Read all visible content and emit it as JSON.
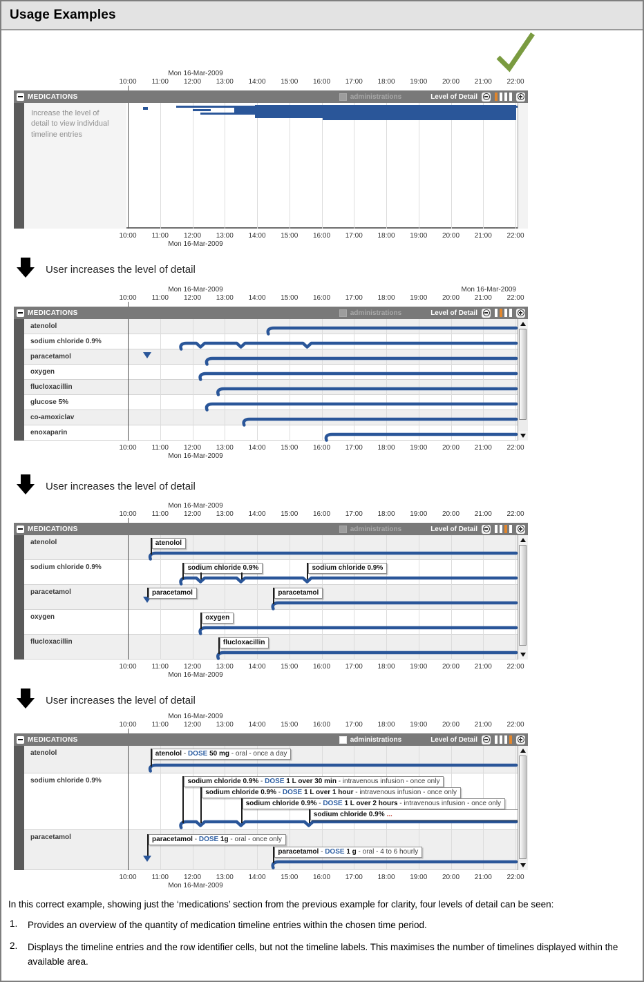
{
  "title": "Usage Examples",
  "checkmark_color": "#7a9b40",
  "arrow_label": "User increases the level of detail",
  "axis": {
    "date": "Mon 16-Mar-2009",
    "hours": [
      "10:00",
      "11:00",
      "12:00",
      "13:00",
      "14:00",
      "15:00",
      "16:00",
      "17:00",
      "18:00",
      "19:00",
      "20:00",
      "21:00",
      "22:00"
    ]
  },
  "header": {
    "section": "MEDICATIONS",
    "administrations": "administrations",
    "level_label": "Level of Detail",
    "levels": 4
  },
  "bar_color": "#2a5699",
  "active_level_color": "#e2862c",
  "panels": [
    {
      "level": 1,
      "admin_enabled": false,
      "right_date": false,
      "scrollbar": false,
      "placeholder": "Increase the level of detail to view individual timeline entries",
      "overview": {
        "dash": [
          24,
          6,
          7,
          4
        ],
        "bands": [
          [
            72,
            4,
            494,
            3
          ],
          [
            96,
            9,
            26,
            3
          ],
          [
            107,
            14,
            50,
            3
          ],
          [
            156,
            7,
            408,
            10
          ],
          [
            186,
            3,
            378,
            19
          ],
          [
            284,
            3,
            280,
            22
          ]
        ]
      }
    },
    {
      "level": 2,
      "admin_enabled": false,
      "right_date": true,
      "scrollbar": true,
      "rows": [
        {
          "label": "atenolol",
          "bar": {
            "start": 14.35,
            "notches": []
          }
        },
        {
          "label": "sodium chloride 0.9%",
          "bar": {
            "start": 11.65,
            "notches": [
              12.25,
              13.5,
              15.55
            ]
          }
        },
        {
          "label": "paracetamol",
          "marker": 10.6,
          "bar": {
            "start": 12.45,
            "notches": []
          }
        },
        {
          "label": "oxygen",
          "bar": {
            "start": 12.25,
            "notches": []
          }
        },
        {
          "label": "flucloxacillin",
          "bar": {
            "start": 12.8,
            "notches": []
          }
        },
        {
          "label": "glucose 5%",
          "bar": {
            "start": 12.45,
            "notches": []
          }
        },
        {
          "label": "co-amoxiclav",
          "bar": {
            "start": 13.6,
            "notches": []
          }
        },
        {
          "label": "enoxaparin",
          "bar": {
            "start": 16.15,
            "notches": []
          }
        }
      ]
    },
    {
      "level": 3,
      "admin_enabled": false,
      "right_date": false,
      "scrollbar": true,
      "rows": [
        {
          "label": "atenolol",
          "bar": {
            "start": 10.7,
            "notches": []
          },
          "tags": [
            {
              "t": 10.7,
              "line": 0,
              "text": "atenolol"
            }
          ]
        },
        {
          "label": "sodium chloride 0.9%",
          "bar": {
            "start": 11.65,
            "notches": [
              12.25,
              13.5,
              15.55
            ]
          },
          "tags": [
            {
              "t": 11.7,
              "line": 0,
              "text": "sodium chloride 0.9%",
              "ticks": [
                12.25,
                13.5
              ]
            },
            {
              "t": 15.55,
              "line": 0,
              "text": "sodium chloride 0.9%"
            }
          ]
        },
        {
          "label": "paracetamol",
          "marker": 10.6,
          "bar": {
            "start": 14.5,
            "notches": []
          },
          "tags": [
            {
              "t": 10.6,
              "line": 0,
              "text": "paracetamol",
              "to": "marker"
            },
            {
              "t": 14.5,
              "line": 0,
              "text": "paracetamol"
            }
          ]
        },
        {
          "label": "oxygen",
          "bar": {
            "start": 12.25,
            "notches": []
          },
          "tags": [
            {
              "t": 12.25,
              "line": 0,
              "text": "oxygen"
            }
          ]
        },
        {
          "label": "flucloxacillin",
          "bar": {
            "start": 12.8,
            "notches": []
          },
          "tags": [
            {
              "t": 12.8,
              "line": 0,
              "text": "flucloxacillin"
            }
          ]
        }
      ]
    },
    {
      "level": 4,
      "admin_enabled": true,
      "right_date": false,
      "scrollbar": true,
      "rows": [
        {
          "label": "atenolol",
          "bar": {
            "start": 10.7,
            "notches": []
          },
          "tags": [
            {
              "t": 10.7,
              "line": 0,
              "name": "atenolol ",
              "dose_word": "DOSE",
              "dose": "50 mg",
              "rest": "oral - once a day"
            }
          ]
        },
        {
          "label": "sodium chloride 0.9%",
          "bar": {
            "start": 11.65,
            "notches": [
              12.25,
              13.5,
              15.6
            ]
          },
          "tags": [
            {
              "t": 11.7,
              "line": 0,
              "name": "sodium chloride 0.9%",
              "dose_word": "DOSE",
              "dose": "1 L over 30 min",
              "rest": "intravenous infusion - once only"
            },
            {
              "t": 12.25,
              "line": 1,
              "name": "sodium chloride 0.9%",
              "dose_word": "DOSE",
              "dose": "1 L over 1 hour",
              "rest": "intravenous infusion - once only"
            },
            {
              "t": 13.5,
              "line": 2,
              "name": "sodium chloride 0.9%",
              "dose_word": "DOSE",
              "dose": "1 L over 2 hours",
              "rest": "intravenous infusion - once only"
            },
            {
              "t": 15.6,
              "line": 3,
              "name": "sodium chloride 0.9%",
              "truncated": true,
              "ell": "..."
            }
          ]
        },
        {
          "label": "paracetamol",
          "marker": 10.6,
          "bar": {
            "start": 14.5,
            "notches": []
          },
          "tags": [
            {
              "t": 10.6,
              "line": 0,
              "name": "paracetamol",
              "dose_word": "DOSE",
              "dose": "1g",
              "rest": "oral - once only",
              "to": "marker"
            },
            {
              "t": 14.5,
              "line": 1,
              "name": "paracetamol",
              "dose_word": "DOSE",
              "dose": "1 g",
              "rest": "oral - 4 to 6 hourly"
            }
          ]
        }
      ]
    }
  ],
  "footer": {
    "intro": "In this correct example, showing just the ‘medications’ section from the previous example for clarity, four levels of detail can be seen:",
    "items": [
      {
        "num": "1.",
        "text": "Provides an overview of the quantity of medication timeline entries within the chosen time period."
      },
      {
        "num": "2.",
        "text": "Displays the timeline entries and the row identifier cells, but not the timeline labels. This maximises the number of timelines displayed within the available area."
      }
    ]
  }
}
